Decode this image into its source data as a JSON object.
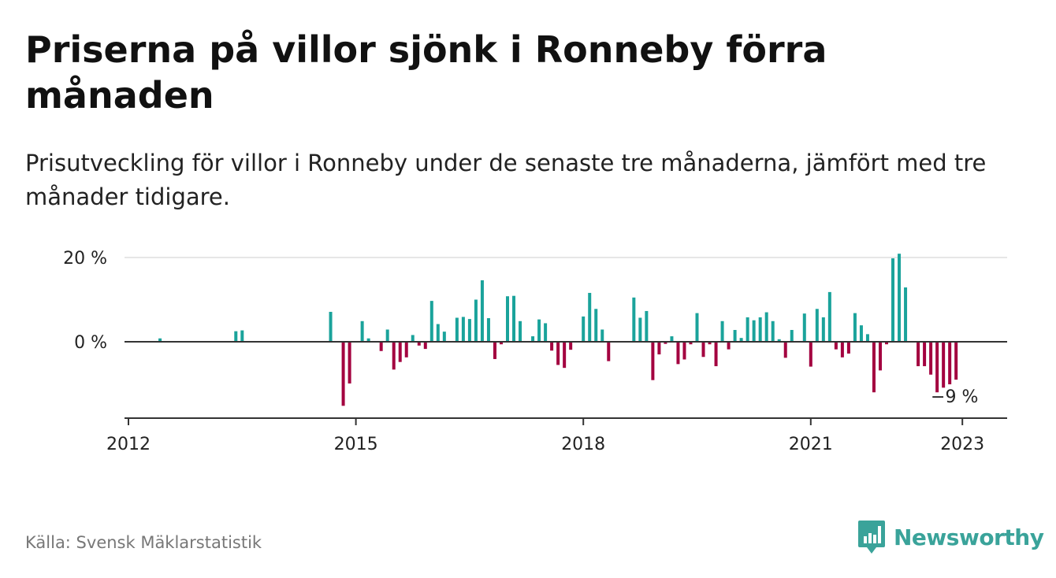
{
  "title": "Priserna på villor sjönk i Ronneby förra månaden",
  "subtitle": "Prisutveckling för villor i Ronneby under de senaste tre månaderna, jämfört med tre månader tidigare.",
  "source": "Källa: Svensk Mäklarstatistik",
  "brand": "Newsworthy",
  "colors": {
    "positive": "#1aa39b",
    "negative": "#a3003f",
    "axis": "#333333",
    "grid": "#dddddd",
    "brand": "#3aa39a"
  },
  "chart_data": {
    "type": "bar",
    "title": "Priserna på villor sjönk i Ronneby förra månaden",
    "subtitle": "Prisutveckling för villor i Ronneby under de senaste tre månaderna, jämfört med tre månader tidigare.",
    "xlabel": "",
    "ylabel": "",
    "x_ticks": [
      "2012",
      "2015",
      "2018",
      "2021",
      "2023"
    ],
    "y_ticks": [
      "20 %",
      "0 %"
    ],
    "ylim": [
      -18,
      21
    ],
    "grid": true,
    "annotation": "−9 %",
    "series": [
      {
        "values": [
          [
            "2012-06",
            0.8
          ],
          [
            "2013-06",
            2.5
          ],
          [
            "2013-07",
            2.7
          ],
          [
            "2014-09",
            7.1
          ],
          [
            "2014-11",
            -15.2
          ],
          [
            "2014-12",
            -9.9
          ],
          [
            "2015-02",
            4.9
          ],
          [
            "2015-03",
            0.8
          ],
          [
            "2015-05",
            -2.2
          ],
          [
            "2015-06",
            2.9
          ],
          [
            "2015-07",
            -6.6
          ],
          [
            "2015-08",
            -4.8
          ],
          [
            "2015-09",
            -3.7
          ],
          [
            "2015-10",
            1.6
          ],
          [
            "2015-11",
            -0.9
          ],
          [
            "2015-12",
            -1.7
          ],
          [
            "2016-01",
            9.7
          ],
          [
            "2016-02",
            4.2
          ],
          [
            "2016-03",
            2.4
          ],
          [
            "2016-05",
            5.7
          ],
          [
            "2016-06",
            5.9
          ],
          [
            "2016-07",
            5.4
          ],
          [
            "2016-08",
            10.0
          ],
          [
            "2016-09",
            14.6
          ],
          [
            "2016-10",
            5.6
          ],
          [
            "2016-11",
            -4.1
          ],
          [
            "2016-12",
            -0.6
          ],
          [
            "2017-01",
            10.8
          ],
          [
            "2017-02",
            10.9
          ],
          [
            "2017-03",
            4.9
          ],
          [
            "2017-05",
            1.3
          ],
          [
            "2017-06",
            5.3
          ],
          [
            "2017-07",
            4.4
          ],
          [
            "2017-08",
            -2.1
          ],
          [
            "2017-09",
            -5.5
          ],
          [
            "2017-10",
            -6.2
          ],
          [
            "2017-11",
            -1.9
          ],
          [
            "2018-01",
            6.0
          ],
          [
            "2018-02",
            11.6
          ],
          [
            "2018-03",
            7.8
          ],
          [
            "2018-04",
            2.9
          ],
          [
            "2018-05",
            -4.6
          ],
          [
            "2018-09",
            10.5
          ],
          [
            "2018-10",
            5.7
          ],
          [
            "2018-11",
            7.3
          ],
          [
            "2018-12",
            -9.1
          ],
          [
            "2019-01",
            -3.0
          ],
          [
            "2019-02",
            -0.5
          ],
          [
            "2019-03",
            1.3
          ],
          [
            "2019-04",
            -5.3
          ],
          [
            "2019-05",
            -4.2
          ],
          [
            "2019-06",
            -0.6
          ],
          [
            "2019-07",
            6.8
          ],
          [
            "2019-08",
            -3.6
          ],
          [
            "2019-09",
            -0.6
          ],
          [
            "2019-10",
            -5.8
          ],
          [
            "2019-11",
            4.9
          ],
          [
            "2019-12",
            -1.8
          ],
          [
            "2020-01",
            2.8
          ],
          [
            "2020-02",
            0.9
          ],
          [
            "2020-03",
            5.8
          ],
          [
            "2020-04",
            5.1
          ],
          [
            "2020-05",
            5.8
          ],
          [
            "2020-06",
            7.0
          ],
          [
            "2020-07",
            4.9
          ],
          [
            "2020-08",
            0.6
          ],
          [
            "2020-09",
            -3.8
          ],
          [
            "2020-10",
            2.8
          ],
          [
            "2020-12",
            6.7
          ],
          [
            "2021-01",
            -5.9
          ],
          [
            "2021-02",
            7.8
          ],
          [
            "2021-03",
            5.8
          ],
          [
            "2021-04",
            11.8
          ],
          [
            "2021-05",
            -1.8
          ],
          [
            "2021-06",
            -3.7
          ],
          [
            "2021-07",
            -2.8
          ],
          [
            "2021-08",
            6.8
          ],
          [
            "2021-09",
            3.9
          ],
          [
            "2021-10",
            1.8
          ],
          [
            "2021-11",
            -12.0
          ],
          [
            "2021-12",
            -6.8
          ],
          [
            "2022-01",
            -0.6
          ],
          [
            "2022-02",
            19.8
          ],
          [
            "2022-03",
            20.9
          ],
          [
            "2022-04",
            12.9
          ],
          [
            "2022-06",
            -5.8
          ],
          [
            "2022-07",
            -5.8
          ],
          [
            "2022-08",
            -7.8
          ],
          [
            "2022-09",
            -12.0
          ],
          [
            "2022-10",
            -10.9
          ],
          [
            "2022-11",
            -10.1
          ],
          [
            "2022-12",
            -9.0
          ]
        ]
      }
    ]
  }
}
